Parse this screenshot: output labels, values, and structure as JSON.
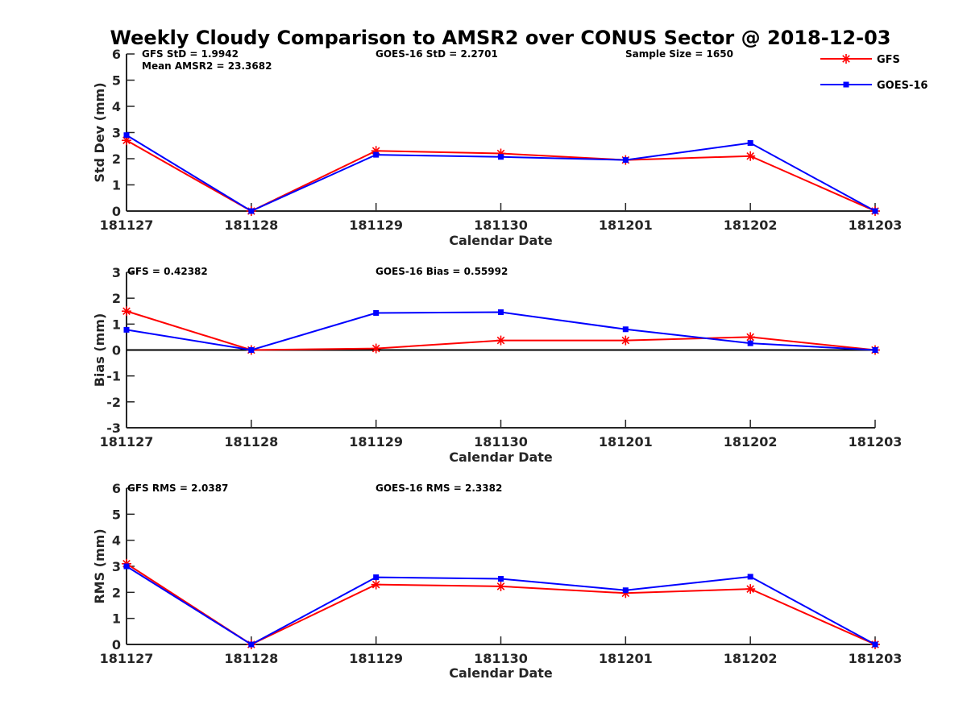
{
  "chart_data": {
    "title": "Weekly Cloudy Comparison to AMSR2 over CONUS Sector @ 2018-12-03",
    "legend": {
      "placement": "top-right",
      "entries": [
        {
          "name": "GFS",
          "color": "#ff0000",
          "marker": "asterisk"
        },
        {
          "name": "GOES-16",
          "color": "#0000ff",
          "marker": "square"
        }
      ]
    },
    "panels": [
      {
        "type": "line",
        "ylabel": "Std Dev (mm)",
        "xlabel": "Calendar Date",
        "ylim": [
          0,
          6
        ],
        "yticks": [
          "0",
          "1",
          "2",
          "3",
          "4",
          "5",
          "6"
        ],
        "categories": [
          "181127",
          "181128",
          "181129",
          "181130",
          "181201",
          "181202",
          "181203"
        ],
        "annotations": [
          "GFS StD = 1.9942",
          "Mean AMSR2 = 23.3682",
          "GOES-16 StD = 2.2701",
          "Sample Size = 1650"
        ],
        "zero_line": false,
        "series": [
          {
            "name": "GFS",
            "color": "#ff0000",
            "values": [
              2.7,
              0.0,
              2.3,
              2.2,
              1.95,
              2.1,
              0.0
            ]
          },
          {
            "name": "GOES-16",
            "color": "#0000ff",
            "values": [
              2.9,
              0.0,
              2.15,
              2.07,
              1.95,
              2.6,
              0.0
            ]
          }
        ]
      },
      {
        "type": "line",
        "ylabel": "Bias (mm)",
        "xlabel": "Calendar Date",
        "ylim": [
          -3,
          3
        ],
        "yticks": [
          "-3",
          "-2",
          "-1",
          "0",
          "1",
          "2",
          "3"
        ],
        "categories": [
          "181127",
          "181128",
          "181129",
          "181130",
          "181201",
          "181202",
          "181203"
        ],
        "annotations": [
          "GFS = 0.42382",
          "GOES-16 Bias  = 0.55992"
        ],
        "zero_line": true,
        "series": [
          {
            "name": "GFS",
            "color": "#ff0000",
            "values": [
              1.5,
              0.0,
              0.06,
              0.37,
              0.37,
              0.5,
              0.0
            ]
          },
          {
            "name": "GOES-16",
            "color": "#0000ff",
            "values": [
              0.78,
              0.0,
              1.43,
              1.46,
              0.8,
              0.26,
              0.0
            ]
          }
        ]
      },
      {
        "type": "line",
        "ylabel": "RMS (mm)",
        "xlabel": "Calendar Date",
        "ylim": [
          0,
          6
        ],
        "yticks": [
          "0",
          "1",
          "2",
          "3",
          "4",
          "5",
          "6"
        ],
        "categories": [
          "181127",
          "181128",
          "181129",
          "181130",
          "181201",
          "181202",
          "181203"
        ],
        "annotations": [
          "GFS RMS = 2.0387",
          "GOES-16 RMS = 2.3382"
        ],
        "zero_line": false,
        "series": [
          {
            "name": "GFS",
            "color": "#ff0000",
            "values": [
              3.1,
              0.0,
              2.3,
              2.23,
              1.97,
              2.13,
              0.0
            ]
          },
          {
            "name": "GOES-16",
            "color": "#0000ff",
            "values": [
              3.0,
              0.0,
              2.58,
              2.52,
              2.08,
              2.6,
              0.0
            ]
          }
        ]
      }
    ]
  }
}
